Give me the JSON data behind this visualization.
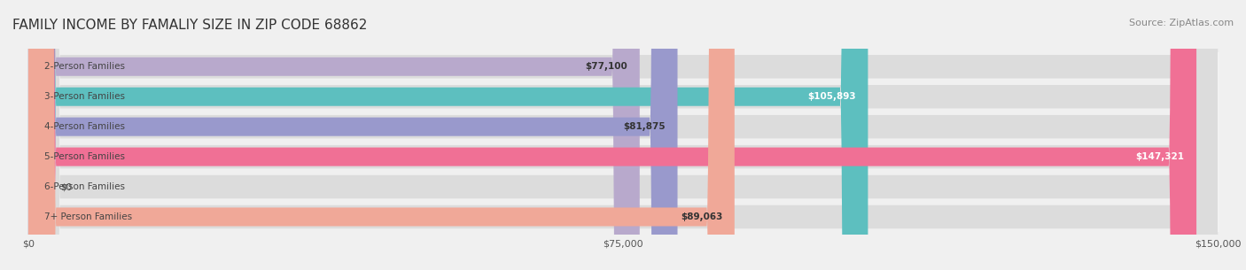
{
  "title": "FAMILY INCOME BY FAMALIY SIZE IN ZIP CODE 68862",
  "source": "Source: ZipAtlas.com",
  "categories": [
    "2-Person Families",
    "3-Person Families",
    "4-Person Families",
    "5-Person Families",
    "6-Person Families",
    "7+ Person Families"
  ],
  "values": [
    77100,
    105893,
    81875,
    147321,
    0,
    89063
  ],
  "bar_colors": [
    "#b8a9cc",
    "#5dbfbf",
    "#9999cc",
    "#f07095",
    "#f5cfa0",
    "#f0a898"
  ],
  "label_colors": [
    "#333333",
    "#ffffff",
    "#333333",
    "#ffffff",
    "#333333",
    "#333333"
  ],
  "xlim": [
    0,
    150000
  ],
  "xticks": [
    0,
    75000,
    150000
  ],
  "xtick_labels": [
    "$0",
    "$75,000",
    "$150,000"
  ],
  "background_color": "#f0f0f0",
  "bar_background": "#e8e8e8",
  "title_fontsize": 11,
  "source_fontsize": 8
}
